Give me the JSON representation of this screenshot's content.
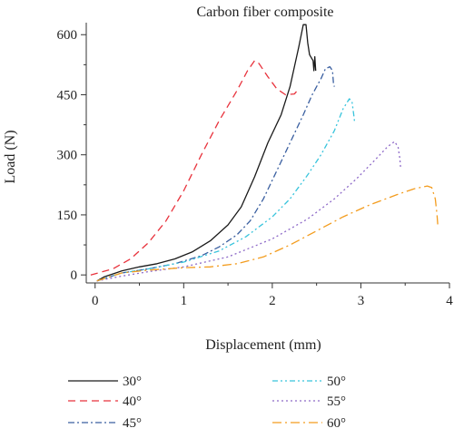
{
  "chart_data": {
    "type": "line",
    "title": "Carbon fiber composite",
    "xlabel": "Displacement (mm)",
    "ylabel": "Load (N)",
    "xlim": [
      -0.1,
      4
    ],
    "ylim": [
      -20,
      630
    ],
    "xticks": [
      0,
      1,
      2,
      3,
      4
    ],
    "yticks": [
      0,
      150,
      300,
      450,
      600
    ],
    "grid": false,
    "legend_position": "bottom",
    "series": [
      {
        "name": "30°",
        "color": "#1a1a1a",
        "dash": "none",
        "points": [
          [
            0.02,
            -15
          ],
          [
            0.1,
            -5
          ],
          [
            0.3,
            10
          ],
          [
            0.5,
            20
          ],
          [
            0.7,
            28
          ],
          [
            0.9,
            40
          ],
          [
            1.1,
            58
          ],
          [
            1.3,
            85
          ],
          [
            1.5,
            125
          ],
          [
            1.65,
            170
          ],
          [
            1.8,
            245
          ],
          [
            1.95,
            330
          ],
          [
            2.1,
            400
          ],
          [
            2.2,
            470
          ],
          [
            2.3,
            570
          ],
          [
            2.35,
            625
          ],
          [
            2.38,
            625
          ],
          [
            2.4,
            580
          ],
          [
            2.42,
            550
          ],
          [
            2.46,
            535
          ],
          [
            2.47,
            510
          ],
          [
            2.48,
            545
          ],
          [
            2.49,
            510
          ]
        ]
      },
      {
        "name": "40°",
        "color": "#e8323c",
        "dash": "8,5",
        "points": [
          [
            -0.05,
            0
          ],
          [
            0.2,
            15
          ],
          [
            0.4,
            40
          ],
          [
            0.6,
            80
          ],
          [
            0.8,
            135
          ],
          [
            1.0,
            210
          ],
          [
            1.2,
            300
          ],
          [
            1.4,
            385
          ],
          [
            1.6,
            460
          ],
          [
            1.72,
            510
          ],
          [
            1.8,
            535
          ],
          [
            1.85,
            528
          ],
          [
            1.95,
            495
          ],
          [
            2.05,
            465
          ],
          [
            2.15,
            450
          ],
          [
            2.25,
            452
          ],
          [
            2.28,
            460
          ]
        ]
      },
      {
        "name": "45°",
        "color": "#3a5fa0",
        "dash": "7,3,2,3",
        "points": [
          [
            0.02,
            -15
          ],
          [
            0.3,
            5
          ],
          [
            0.6,
            15
          ],
          [
            0.9,
            28
          ],
          [
            1.2,
            48
          ],
          [
            1.4,
            70
          ],
          [
            1.6,
            100
          ],
          [
            1.75,
            135
          ],
          [
            1.9,
            190
          ],
          [
            2.05,
            260
          ],
          [
            2.2,
            330
          ],
          [
            2.35,
            400
          ],
          [
            2.45,
            450
          ],
          [
            2.55,
            490
          ],
          [
            2.6,
            515
          ],
          [
            2.65,
            520
          ],
          [
            2.68,
            510
          ],
          [
            2.69,
            480
          ],
          [
            2.7,
            470
          ]
        ]
      },
      {
        "name": "50°",
        "color": "#38c4dc",
        "dash": "6,3,2,3,2,3",
        "points": [
          [
            0.02,
            -15
          ],
          [
            0.3,
            5
          ],
          [
            0.6,
            15
          ],
          [
            1.0,
            32
          ],
          [
            1.4,
            60
          ],
          [
            1.7,
            95
          ],
          [
            2.0,
            145
          ],
          [
            2.2,
            190
          ],
          [
            2.4,
            250
          ],
          [
            2.55,
            300
          ],
          [
            2.7,
            360
          ],
          [
            2.8,
            415
          ],
          [
            2.87,
            440
          ],
          [
            2.9,
            432
          ],
          [
            2.92,
            400
          ],
          [
            2.93,
            380
          ]
        ]
      },
      {
        "name": "55°",
        "color": "#8e6ac8",
        "dash": "2,3",
        "points": [
          [
            0.02,
            -15
          ],
          [
            0.3,
            -3
          ],
          [
            0.6,
            8
          ],
          [
            1.0,
            20
          ],
          [
            1.5,
            45
          ],
          [
            2.0,
            90
          ],
          [
            2.4,
            140
          ],
          [
            2.7,
            190
          ],
          [
            2.95,
            240
          ],
          [
            3.15,
            285
          ],
          [
            3.3,
            320
          ],
          [
            3.38,
            333
          ],
          [
            3.42,
            320
          ],
          [
            3.44,
            290
          ],
          [
            3.45,
            265
          ]
        ]
      },
      {
        "name": "60°",
        "color": "#f39c1e",
        "dash": "10,4,2,4",
        "points": [
          [
            0.02,
            -15
          ],
          [
            0.3,
            5
          ],
          [
            0.6,
            12
          ],
          [
            1.0,
            18
          ],
          [
            1.3,
            20
          ],
          [
            1.6,
            28
          ],
          [
            1.9,
            45
          ],
          [
            2.2,
            75
          ],
          [
            2.5,
            110
          ],
          [
            2.8,
            145
          ],
          [
            3.1,
            175
          ],
          [
            3.4,
            200
          ],
          [
            3.6,
            215
          ],
          [
            3.75,
            222
          ],
          [
            3.8,
            218
          ],
          [
            3.84,
            190
          ],
          [
            3.86,
            150
          ],
          [
            3.87,
            120
          ]
        ]
      }
    ]
  }
}
